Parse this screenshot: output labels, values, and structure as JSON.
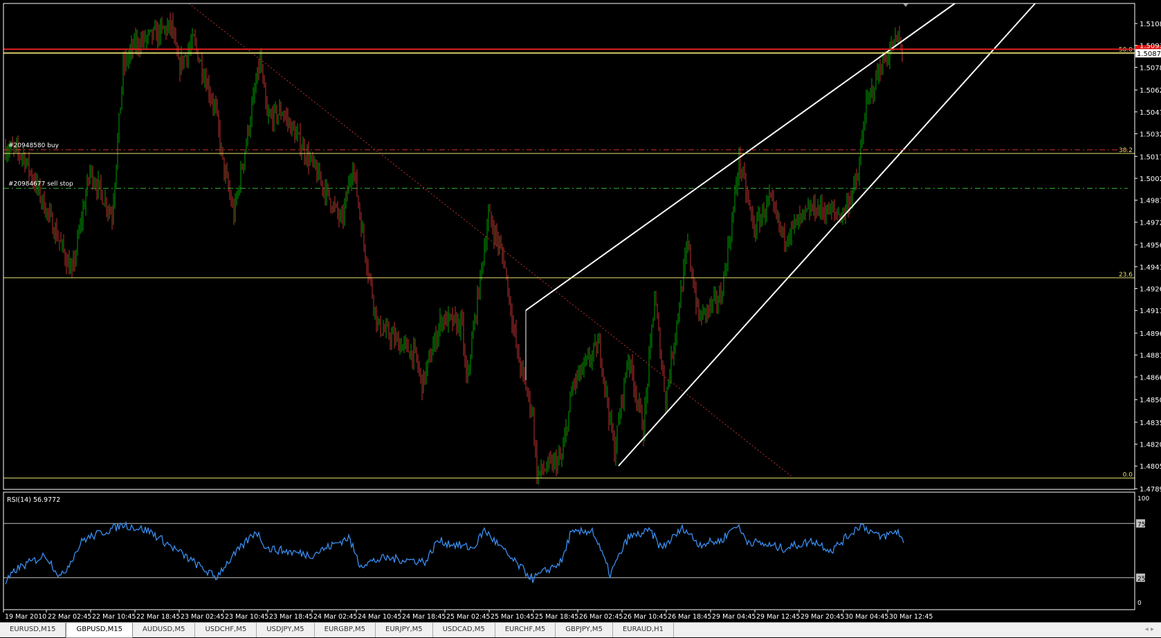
{
  "chart_data": [
    {
      "type": "ohlc",
      "symbol_tab": "GBPUSD,M15",
      "price_ticks": [
        "1.51080",
        "1.50930",
        "1.50780",
        "1.50625",
        "1.50475",
        "1.50325",
        "1.50170",
        "1.50020",
        "1.49870",
        "1.49720",
        "1.49565",
        "1.49415",
        "1.49265",
        "1.49115",
        "1.48960",
        "1.48810",
        "1.48660",
        "1.48505",
        "1.48350",
        "1.48200",
        "1.48050",
        "1.47895"
      ],
      "ylim": [
        1.47895,
        1.5108
      ],
      "current_bid_label": "1.50876",
      "current_bid": 1.50876,
      "ask_line": 1.50904,
      "close_path": [
        [
          0,
          1.50225
        ],
        [
          3,
          1.50225
        ],
        [
          13,
          1.50174
        ],
        [
          40,
          1.49567
        ],
        [
          48,
          1.49365
        ],
        [
          61,
          1.50073
        ],
        [
          77,
          1.49769
        ],
        [
          85,
          1.50781
        ],
        [
          93,
          1.50933
        ],
        [
          120,
          1.5106
        ],
        [
          125,
          1.50781
        ],
        [
          136,
          1.50959
        ],
        [
          152,
          1.50478
        ],
        [
          157,
          1.50124
        ],
        [
          165,
          1.49769
        ],
        [
          184,
          1.50832
        ],
        [
          189,
          1.50427
        ],
        [
          200,
          1.50478
        ],
        [
          221,
          1.50124
        ],
        [
          243,
          1.49719
        ],
        [
          251,
          1.50124
        ],
        [
          259,
          1.49567
        ],
        [
          269,
          1.4901
        ],
        [
          296,
          1.48808
        ],
        [
          301,
          1.48606
        ],
        [
          315,
          1.49061
        ],
        [
          330,
          1.4901
        ],
        [
          333,
          1.48606
        ],
        [
          349,
          1.49769
        ],
        [
          360,
          1.49466
        ],
        [
          370,
          1.48808
        ],
        [
          381,
          1.48403
        ],
        [
          384,
          1.47998
        ],
        [
          402,
          1.481
        ],
        [
          410,
          1.48606
        ],
        [
          429,
          1.48884
        ],
        [
          440,
          1.4815
        ],
        [
          450,
          1.48808
        ],
        [
          461,
          1.48302
        ],
        [
          469,
          1.49213
        ],
        [
          477,
          1.48504
        ],
        [
          493,
          1.49567
        ],
        [
          501,
          1.49061
        ],
        [
          517,
          1.49213
        ],
        [
          525,
          1.49719
        ],
        [
          530,
          1.50149
        ],
        [
          541,
          1.49668
        ],
        [
          552,
          1.49871
        ],
        [
          562,
          1.49618
        ],
        [
          584,
          1.4982
        ],
        [
          605,
          1.49769
        ],
        [
          616,
          1.50022
        ],
        [
          621,
          1.50478
        ],
        [
          632,
          1.50781
        ],
        [
          637,
          1.50857
        ],
        [
          645,
          1.50984
        ],
        [
          648,
          1.50876
        ]
      ],
      "up_color": "#00a000",
      "down_color": "#c03030",
      "fibonacci": [
        {
          "label": "50.0",
          "price": 1.5088
        },
        {
          "label": "38.2",
          "price": 1.5019
        },
        {
          "label": "23.6",
          "price": 1.49339
        },
        {
          "label": "0.0",
          "price": 1.47968
        }
      ],
      "orders": [
        {
          "label": "#20948580 buy",
          "price": 1.50215,
          "color": "#d03030"
        },
        {
          "label": "#20984677 sell stop",
          "price": 1.49952,
          "color": "#30b030"
        }
      ],
      "time_ticks": [
        "19 Mar 2010",
        "22 Mar 02:45",
        "22 Mar 10:45",
        "22 Mar 18:45",
        "23 Mar 02:45",
        "23 Mar 10:45",
        "23 Mar 18:45",
        "24 Mar 02:45",
        "24 Mar 10:45",
        "24 Mar 18:45",
        "25 Mar 02:45",
        "25 Mar 10:45",
        "25 Mar 18:45",
        "26 Mar 02:45",
        "26 Mar 10:45",
        "26 Mar 18:45",
        "29 Mar 04:45",
        "29 Mar 12:45",
        "29 Mar 20:45",
        "30 Mar 04:45",
        "30 Mar 12:45"
      ]
    },
    {
      "type": "line",
      "label": "RSI(14) 56.9772",
      "ylim": [
        0,
        100
      ],
      "y_ticks": [
        "100",
        "75",
        "25",
        "0"
      ],
      "levels": [
        75,
        25
      ],
      "color": "#3a8ef0",
      "path": [
        [
          0,
          20
        ],
        [
          8,
          33
        ],
        [
          29,
          46
        ],
        [
          40,
          25
        ],
        [
          56,
          60
        ],
        [
          85,
          74
        ],
        [
          104,
          68
        ],
        [
          125,
          49
        ],
        [
          152,
          25
        ],
        [
          157,
          34
        ],
        [
          181,
          68
        ],
        [
          189,
          52
        ],
        [
          221,
          46
        ],
        [
          248,
          62
        ],
        [
          256,
          37
        ],
        [
          274,
          43
        ],
        [
          304,
          40
        ],
        [
          312,
          59
        ],
        [
          338,
          52
        ],
        [
          346,
          69
        ],
        [
          365,
          43
        ],
        [
          381,
          24
        ],
        [
          402,
          40
        ],
        [
          408,
          65
        ],
        [
          424,
          69
        ],
        [
          437,
          28
        ],
        [
          450,
          62
        ],
        [
          466,
          68
        ],
        [
          474,
          52
        ],
        [
          490,
          71
        ],
        [
          501,
          56
        ],
        [
          517,
          59
        ],
        [
          528,
          74
        ],
        [
          536,
          59
        ],
        [
          562,
          52
        ],
        [
          584,
          59
        ],
        [
          597,
          50
        ],
        [
          618,
          74
        ],
        [
          632,
          62
        ],
        [
          645,
          68
        ],
        [
          649,
          57
        ]
      ]
    }
  ],
  "tabs": [
    "EURUSD,M15",
    "GBPUSD,M15",
    "AUDUSD,M5",
    "USDCHF,M5",
    "USDJPY,M5",
    "EURGBP,M5",
    "EURJPY,M5",
    "USDCAD,M5",
    "EURCHF,M5",
    "GBPJPY,M5",
    "EURAUD,H1"
  ],
  "active_tab": "GBPUSD,M15"
}
